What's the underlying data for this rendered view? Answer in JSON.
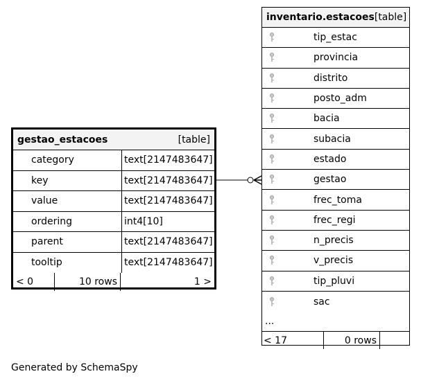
{
  "gestao_table": {
    "name": "gestao_estacoes",
    "type_label": "[table]",
    "columns": [
      {
        "name": "category",
        "type": "text[2147483647]"
      },
      {
        "name": "key",
        "type": "text[2147483647]"
      },
      {
        "name": "value",
        "type": "text[2147483647]"
      },
      {
        "name": "ordering",
        "type": "int4[10]"
      },
      {
        "name": "parent",
        "type": "text[2147483647]"
      },
      {
        "name": "tooltip",
        "type": "text[2147483647]"
      }
    ],
    "footer": {
      "left": "< 0",
      "middle": "10 rows",
      "right": "1 >"
    }
  },
  "inventario_table": {
    "name": "inventario.estacoes",
    "type_label": "[table]",
    "columns": [
      {
        "name": "tip_estac"
      },
      {
        "name": "provincia"
      },
      {
        "name": "distrito"
      },
      {
        "name": "posto_adm"
      },
      {
        "name": "bacia"
      },
      {
        "name": "subacia"
      },
      {
        "name": "estado"
      },
      {
        "name": "gestao"
      },
      {
        "name": "frec_toma"
      },
      {
        "name": "frec_regi"
      },
      {
        "name": "n_precis"
      },
      {
        "name": "v_precis"
      },
      {
        "name": "tip_pluvi"
      },
      {
        "name": "sac"
      }
    ],
    "ellipsis": "...",
    "footer": {
      "left": "< 17",
      "middle": "0 rows",
      "right": ""
    }
  },
  "generated_by": "Generated by SchemaSpy"
}
